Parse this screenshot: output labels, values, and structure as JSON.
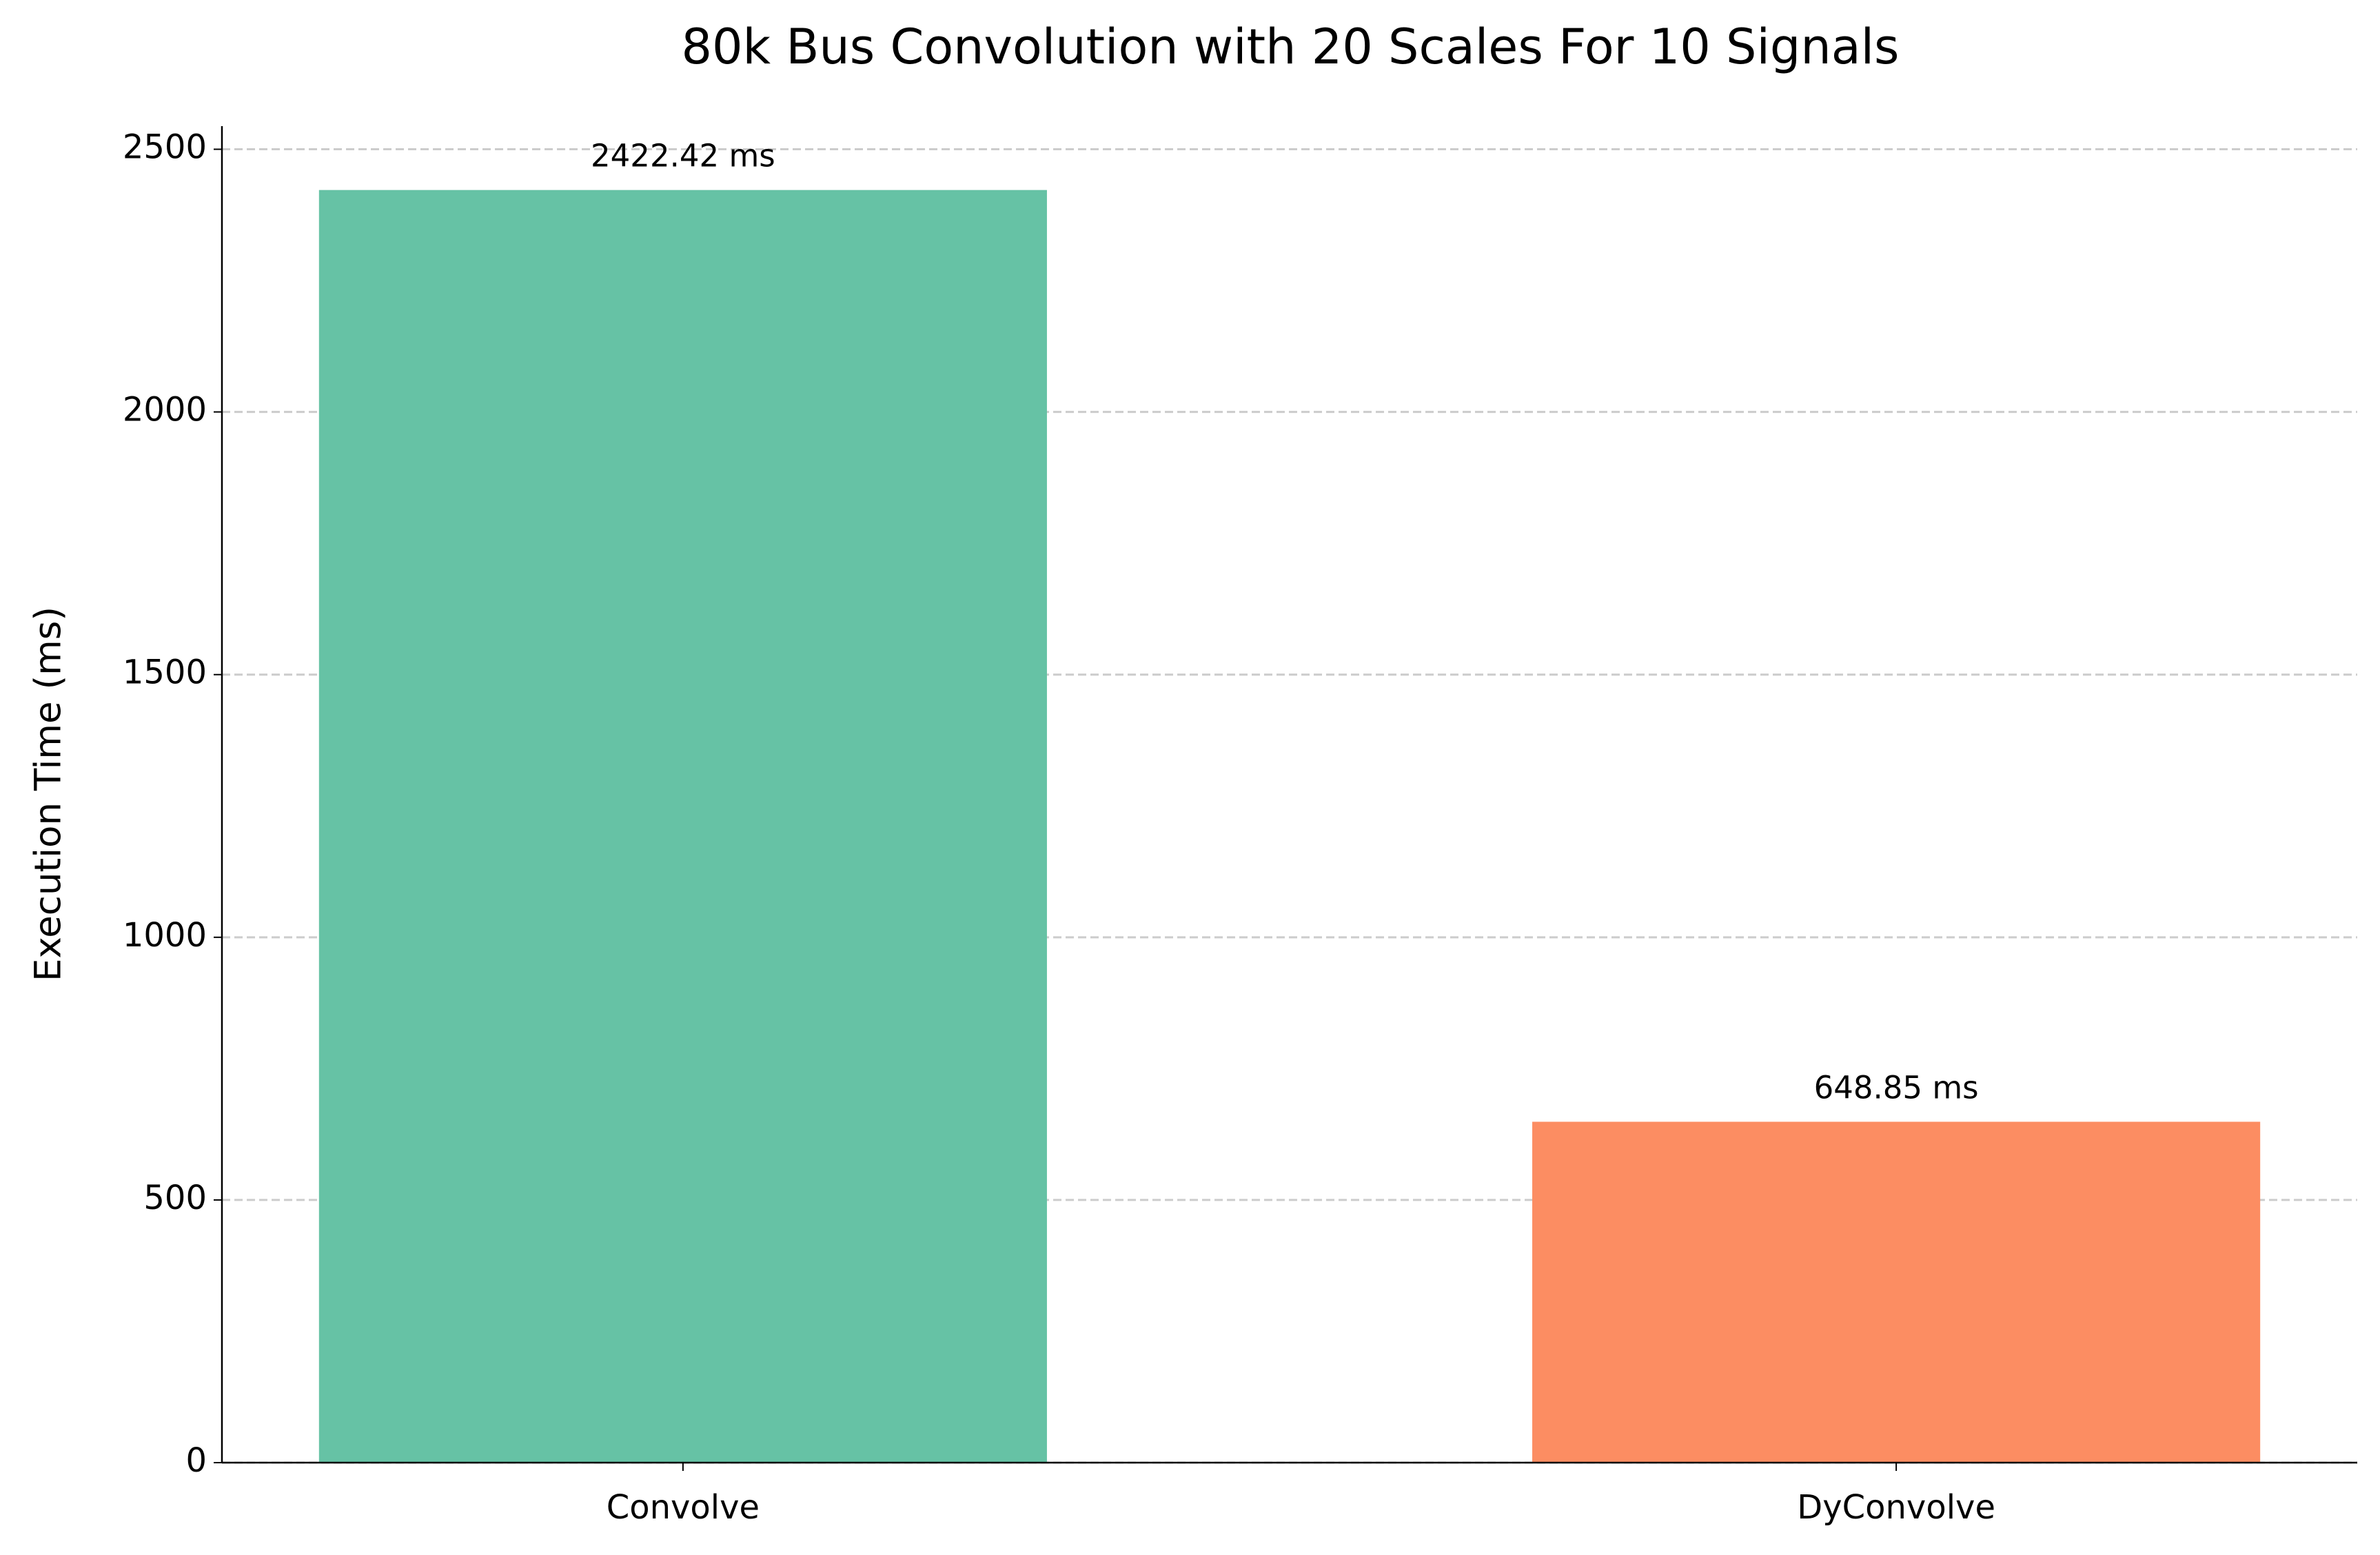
{
  "chart_data": {
    "type": "bar",
    "title": "80k Bus Convolution with 20 Scales For 10 Signals",
    "y_label": "Execution Time (ms)",
    "categories": [
      "Convolve",
      "DyConvolve"
    ],
    "values": [
      2422.42,
      648.85
    ],
    "value_labels": [
      "2422.42 ms",
      "648.85 ms"
    ],
    "colors": [
      "#66c2a5",
      "#fc8d62"
    ],
    "ylim": [
      0,
      2544
    ],
    "yticks": [
      0,
      500,
      1000,
      1500,
      2000,
      2500
    ],
    "grid": true
  }
}
